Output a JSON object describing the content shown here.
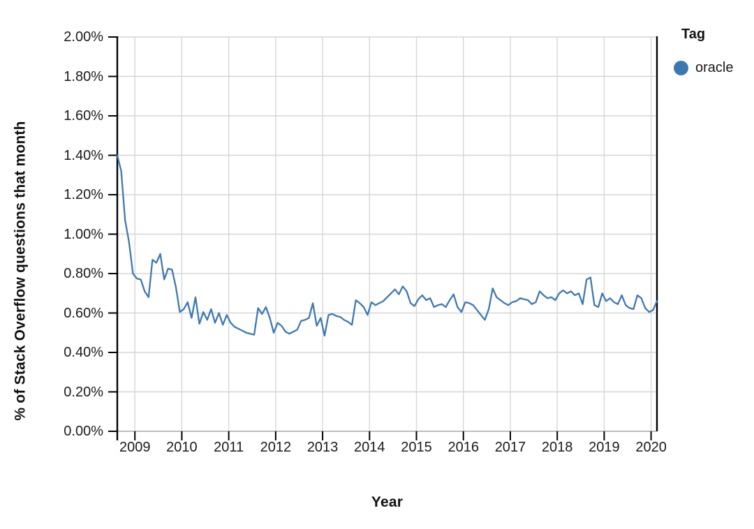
{
  "chart_data": {
    "type": "line",
    "title": "",
    "xlabel": "Year",
    "ylabel": "% of Stack Overflow questions that month",
    "grid": true,
    "legend_position": "top-right",
    "legend": {
      "title": "Tag",
      "items": [
        {
          "label": "oracle",
          "color": "#3d79b1"
        }
      ]
    },
    "x_tick_labels": [
      "2009",
      "2010",
      "2011",
      "2012",
      "2013",
      "2014",
      "2015",
      "2016",
      "2017",
      "2018",
      "2019",
      "2020"
    ],
    "y_tick_labels": [
      "2.00%",
      "1.80%",
      "1.60%",
      "1.40%",
      "1.20%",
      "1.00%",
      "0.80%",
      "0.60%",
      "0.40%",
      "0.20%",
      "0.00%"
    ],
    "y_tick_values": [
      2.0,
      1.8,
      1.6,
      1.4,
      1.2,
      1.0,
      0.8,
      0.6,
      0.4,
      0.2,
      0.0
    ],
    "ylim": [
      0,
      2.0
    ],
    "x_start_month": "2008-08",
    "x_end_month": "2020-02",
    "points_frequency": "monthly",
    "colors": {
      "line": "#3d79b1",
      "grid": "#d6d6d6",
      "axis": "#000000",
      "axis_bottom": "#a8a8a8",
      "text": "#1a1a1a"
    },
    "series": [
      {
        "name": "oracle",
        "color": "#3d79b1",
        "unit": "percent of Stack Overflow questions",
        "values_percent": [
          1.4,
          1.32,
          1.07,
          0.96,
          0.8,
          0.775,
          0.77,
          0.71,
          0.68,
          0.87,
          0.855,
          0.9,
          0.77,
          0.825,
          0.82,
          0.73,
          0.605,
          0.62,
          0.655,
          0.575,
          0.68,
          0.545,
          0.605,
          0.565,
          0.62,
          0.55,
          0.6,
          0.54,
          0.59,
          0.55,
          0.53,
          0.52,
          0.51,
          0.5,
          0.495,
          0.49,
          0.625,
          0.595,
          0.63,
          0.575,
          0.5,
          0.55,
          0.535,
          0.505,
          0.495,
          0.505,
          0.515,
          0.56,
          0.565,
          0.575,
          0.65,
          0.535,
          0.575,
          0.485,
          0.59,
          0.595,
          0.585,
          0.58,
          0.565,
          0.555,
          0.54,
          0.665,
          0.65,
          0.63,
          0.59,
          0.655,
          0.64,
          0.65,
          0.66,
          0.68,
          0.7,
          0.72,
          0.695,
          0.735,
          0.71,
          0.65,
          0.635,
          0.67,
          0.69,
          0.665,
          0.675,
          0.63,
          0.64,
          0.645,
          0.63,
          0.665,
          0.695,
          0.63,
          0.605,
          0.655,
          0.65,
          0.64,
          0.615,
          0.59,
          0.565,
          0.62,
          0.725,
          0.68,
          0.665,
          0.65,
          0.64,
          0.655,
          0.66,
          0.675,
          0.67,
          0.665,
          0.645,
          0.655,
          0.71,
          0.69,
          0.675,
          0.68,
          0.665,
          0.7,
          0.715,
          0.7,
          0.71,
          0.69,
          0.7,
          0.645,
          0.77,
          0.78,
          0.64,
          0.63,
          0.7,
          0.66,
          0.675,
          0.655,
          0.645,
          0.69,
          0.64,
          0.625,
          0.62,
          0.69,
          0.675,
          0.625,
          0.605,
          0.615,
          0.66
        ]
      }
    ]
  }
}
